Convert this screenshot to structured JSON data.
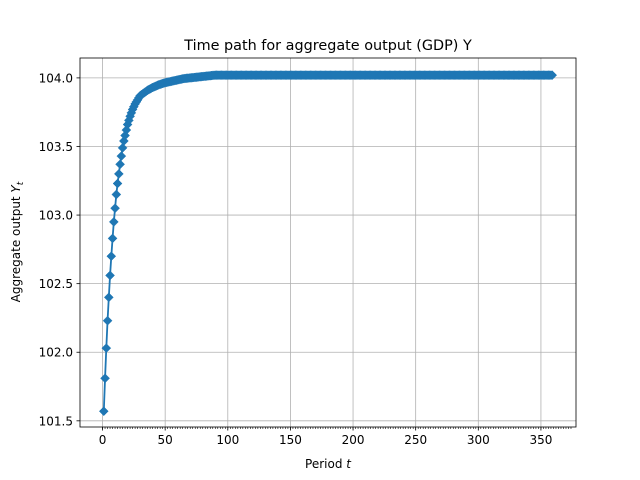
{
  "chart_data": {
    "type": "line",
    "title": "Time path for aggregate output (GDP) Y",
    "xlabel_prefix": "Period ",
    "xlabel_var": "t",
    "ylabel_prefix": "Aggregate output ",
    "ylabel_var": "Y",
    "ylabel_sub": "t",
    "xlim": [
      -18,
      378
    ],
    "ylim": [
      101.455,
      104.145
    ],
    "x_ticks": [
      0,
      50,
      100,
      150,
      200,
      250,
      300,
      350
    ],
    "x_tick_labels": [
      "0",
      "50",
      "100",
      "150",
      "200",
      "250",
      "300",
      "350"
    ],
    "y_ticks": [
      101.5,
      102.0,
      102.5,
      103.0,
      103.5,
      104.0
    ],
    "y_tick_labels": [
      "101.5",
      "102.0",
      "102.5",
      "103.0",
      "103.5",
      "104.0"
    ],
    "grid": true,
    "marker": "diamond",
    "color": "#1f77b4",
    "series": [
      {
        "x": [
          1,
          2,
          3,
          4,
          5,
          6,
          7,
          8,
          9,
          10,
          11,
          12,
          13,
          14,
          15,
          16,
          17,
          18,
          19,
          20,
          22,
          24,
          26,
          28,
          30,
          33,
          36,
          40,
          45,
          50,
          55,
          60,
          65,
          70,
          75,
          80,
          85,
          90,
          100,
          120,
          150,
          200,
          250,
          300,
          359
        ],
        "values": [
          101.57,
          101.81,
          102.03,
          102.23,
          102.4,
          102.56,
          102.7,
          102.83,
          102.95,
          103.05,
          103.15,
          103.23,
          103.3,
          103.37,
          103.43,
          103.49,
          103.54,
          103.58,
          103.62,
          103.66,
          103.72,
          103.77,
          103.81,
          103.84,
          103.87,
          103.89,
          103.91,
          103.93,
          103.95,
          103.965,
          103.975,
          103.985,
          103.995,
          104.0,
          104.005,
          104.01,
          104.015,
          104.02,
          104.02,
          104.02,
          104.02,
          104.02,
          104.02,
          104.02,
          104.02
        ]
      }
    ]
  }
}
